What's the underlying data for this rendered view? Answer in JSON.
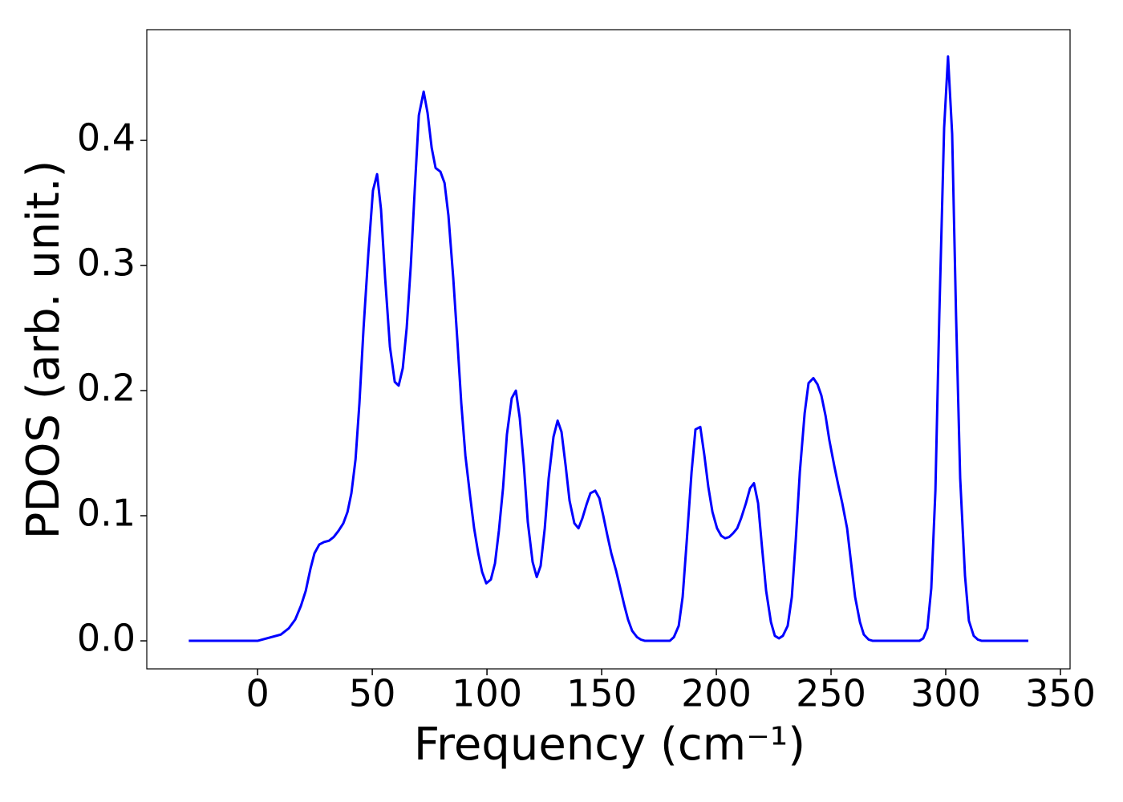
{
  "chart_data": {
    "type": "line",
    "xlabel": "Frequency (cm⁻¹)",
    "ylabel": "PDOS (arb. unit.)",
    "color": "#0000ff",
    "x": [
      -30,
      0,
      10.1,
      13.6,
      16.4,
      18.9,
      21,
      23.1,
      24.8,
      26.9,
      29,
      31.1,
      33.2,
      35.3,
      37.4,
      39.2,
      40.9,
      42.7,
      44.4,
      46.2,
      48.3,
      50.3,
      52.1,
      53.8,
      55.6,
      57.7,
      59.8,
      61.5,
      63.3,
      65,
      66.8,
      68.5,
      70.3,
      72.4,
      74.1,
      75.9,
      77.6,
      79.7,
      81.5,
      83.2,
      85.3,
      87.1,
      88.8,
      90.6,
      92.7,
      94.4,
      96.2,
      97.9,
      99.7,
      101.7,
      103.5,
      105.2,
      107,
      108.7,
      110.8,
      112.6,
      114.3,
      116.1,
      117.8,
      119.9,
      121.7,
      123.4,
      125.2,
      126.9,
      129,
      130.8,
      132.5,
      134.3,
      136,
      138.1,
      139.9,
      141.6,
      143.4,
      145.1,
      147.2,
      149,
      150.7,
      152.4,
      154.2,
      156.3,
      158,
      159.8,
      161.5,
      163.3,
      165.4,
      167.1,
      168.9,
      179.7,
      181.5,
      183.6,
      185.3,
      187.1,
      189.2,
      190.9,
      193,
      194.8,
      196.5,
      198.3,
      200.3,
      202.1,
      203.8,
      205.6,
      207.3,
      209.1,
      210.8,
      212.9,
      214.7,
      216.4,
      218.2,
      219.9,
      221.7,
      223.8,
      225.5,
      227.3,
      229,
      231.1,
      232.9,
      234.6,
      236.4,
      238.5,
      240.2,
      242.3,
      244.1,
      245.8,
      247.6,
      249.3,
      251.4,
      253.1,
      254.9,
      257,
      258.7,
      260.5,
      262.6,
      264.3,
      266.4,
      268.2,
      288.5,
      290.2,
      292,
      293.7,
      295.5,
      297.2,
      299.3,
      301,
      302.8,
      304.5,
      306.3,
      308.4,
      310.1,
      312.2,
      314,
      315.7,
      336
    ],
    "values": [
      0,
      0,
      0.005,
      0.01,
      0.017,
      0.028,
      0.04,
      0.058,
      0.07,
      0.077,
      0.079,
      0.08,
      0.083,
      0.088,
      0.094,
      0.103,
      0.118,
      0.145,
      0.19,
      0.25,
      0.31,
      0.36,
      0.373,
      0.345,
      0.29,
      0.235,
      0.207,
      0.204,
      0.218,
      0.25,
      0.3,
      0.36,
      0.42,
      0.439,
      0.422,
      0.394,
      0.378,
      0.375,
      0.366,
      0.34,
      0.29,
      0.24,
      0.19,
      0.148,
      0.115,
      0.09,
      0.07,
      0.055,
      0.046,
      0.049,
      0.062,
      0.088,
      0.122,
      0.165,
      0.194,
      0.2,
      0.178,
      0.14,
      0.095,
      0.063,
      0.051,
      0.06,
      0.09,
      0.13,
      0.163,
      0.176,
      0.167,
      0.14,
      0.112,
      0.094,
      0.09,
      0.098,
      0.109,
      0.118,
      0.12,
      0.114,
      0.1,
      0.085,
      0.07,
      0.056,
      0.043,
      0.029,
      0.017,
      0.008,
      0.003,
      0.001,
      0,
      0,
      0.003,
      0.012,
      0.035,
      0.08,
      0.135,
      0.169,
      0.171,
      0.148,
      0.123,
      0.103,
      0.09,
      0.084,
      0.082,
      0.083,
      0.086,
      0.09,
      0.098,
      0.11,
      0.122,
      0.126,
      0.11,
      0.075,
      0.04,
      0.015,
      0.004,
      0.002,
      0.004,
      0.012,
      0.035,
      0.08,
      0.135,
      0.182,
      0.206,
      0.21,
      0.205,
      0.196,
      0.18,
      0.16,
      0.14,
      0.125,
      0.11,
      0.09,
      0.063,
      0.035,
      0.015,
      0.005,
      0.001,
      0,
      0,
      0.002,
      0.01,
      0.042,
      0.12,
      0.26,
      0.41,
      0.467,
      0.405,
      0.26,
      0.13,
      0.052,
      0.016,
      0.004,
      0.001,
      0,
      0
    ],
    "xlim": [
      -48.3,
      354.2
    ],
    "ylim": [
      -0.0224,
      0.4885
    ],
    "xticks": [
      0,
      50,
      100,
      150,
      200,
      250,
      300,
      350
    ],
    "yticks": [
      {
        "value": 0,
        "label": "0.0"
      },
      {
        "value": 0.1,
        "label": "0.1"
      },
      {
        "value": 0.2,
        "label": "0.2"
      },
      {
        "value": 0.3,
        "label": "0.3"
      },
      {
        "value": 0.4,
        "label": "0.4"
      }
    ],
    "grid": false
  }
}
